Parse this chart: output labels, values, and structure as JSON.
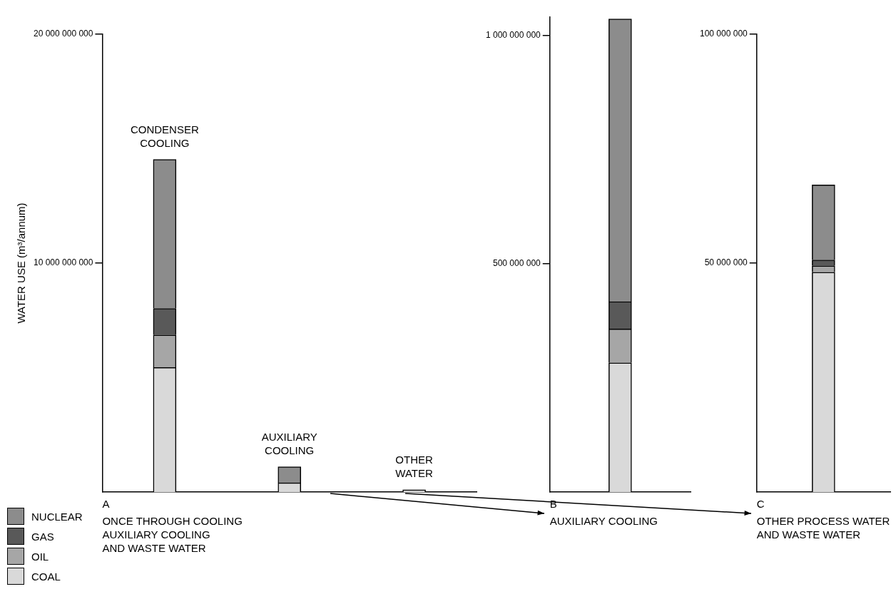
{
  "chart_data": [
    {
      "type": "bar",
      "stacked": true,
      "ylabel": "WATER USE (m³/annum)",
      "xlabel": "ONCE THROUGH COOLING\nAUXILIARY COOLING\nAND WASTE WATER",
      "annotations": [
        "A"
      ],
      "categories": [
        "CONDENSER COOLING",
        "AUXILIARY COOLING",
        "OTHER WATER"
      ],
      "tick_labels": "y",
      "legend": "bottom left",
      "ylim": [
        0,
        20000000000
      ],
      "yticks": [
        {
          "value": 10000000000,
          "label": "10 000 000 000"
        },
        {
          "value": 20000000000,
          "label": "20 000 000 000"
        }
      ],
      "series": [
        {
          "name": "COAL",
          "color": "#d9d9d9",
          "values": [
            5440000000,
            400000000,
            100000000
          ]
        },
        {
          "name": "OIL",
          "color": "#a6a6a6",
          "values": [
            1420000000,
            null,
            null
          ]
        },
        {
          "name": "GAS",
          "color": "#595959",
          "values": [
            1160000000,
            null,
            null
          ]
        },
        {
          "name": "NUCLEAR",
          "color": "#8c8c8c",
          "values": [
            6510000000,
            700000000,
            null
          ]
        }
      ]
    },
    {
      "type": "bar",
      "stacked": true,
      "xlabel": "AUXILIARY COOLING",
      "annotations": [
        "B"
      ],
      "categories": [
        null
      ],
      "tick_labels": "y",
      "ylim": [
        0,
        1040000000
      ],
      "yticks": [
        {
          "value": 500000000,
          "label": "500 000 000"
        },
        {
          "value": 1000000000,
          "label": "1 000 000 000"
        }
      ],
      "series": [
        {
          "color": "#d9d9d9",
          "values": [
            283000000
          ]
        },
        {
          "color": "#a6a6a6",
          "values": [
            74000000
          ]
        },
        {
          "color": "#595959",
          "values": [
            60000000
          ]
        },
        {
          "color": "#8c8c8c",
          "values": [
            619000000
          ]
        }
      ]
    },
    {
      "type": "bar",
      "stacked": true,
      "xlabel": "OTHER PROCESS WATER\nAND WASTE WATER",
      "annotations": [
        "C"
      ],
      "categories": [
        null
      ],
      "tick_labels": "y",
      "ylim": [
        0,
        100000000
      ],
      "yticks": [
        {
          "value": 50000000,
          "label": "50 000 000"
        },
        {
          "value": 100000000,
          "label": "100 000 000"
        }
      ],
      "series": [
        {
          "color": "#d9d9d9",
          "values": [
            48000000
          ]
        },
        {
          "color": "#a6a6a6",
          "values": [
            1400000
          ]
        },
        {
          "color": "#595959",
          "values": [
            1300000
          ]
        },
        {
          "color": "#8c8c8c",
          "values": [
            16400000
          ]
        }
      ]
    }
  ]
}
